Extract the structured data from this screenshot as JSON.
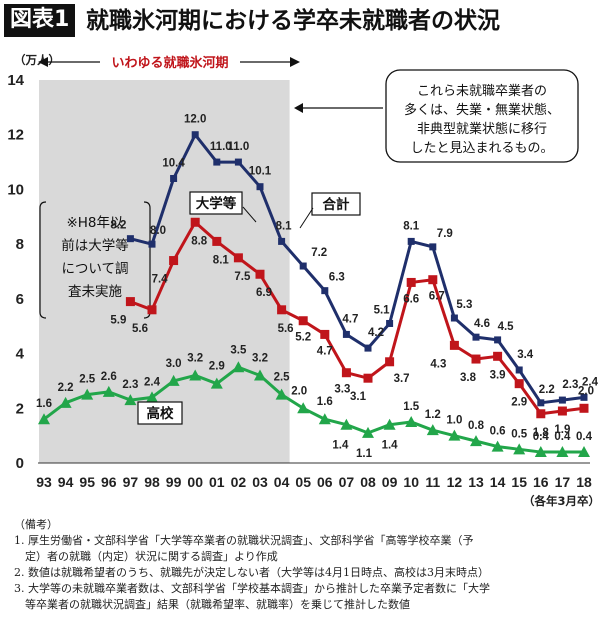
{
  "figure_label": "図表1",
  "figure_title": "就職氷河期における学卒未就職者の状況",
  "chart_data": {
    "type": "line",
    "title": "就職氷河期における学卒未就職者の状況",
    "ylabel": "（万人）",
    "xlabel": "（各年3月卒）",
    "ylim": [
      0,
      14
    ],
    "yticks": [
      0,
      2,
      4,
      6,
      8,
      10,
      12,
      14
    ],
    "categories": [
      "93",
      "94",
      "95",
      "96",
      "97",
      "98",
      "99",
      "00",
      "01",
      "02",
      "03",
      "04",
      "05",
      "06",
      "07",
      "08",
      "09",
      "10",
      "11",
      "12",
      "13",
      "14",
      "15",
      "16",
      "17",
      "18"
    ],
    "series": [
      {
        "name": "合計",
        "color": "#1f2f6b",
        "marker": "square",
        "values": [
          null,
          null,
          null,
          null,
          8.2,
          8.0,
          10.4,
          12.0,
          11.0,
          11.0,
          10.1,
          8.1,
          7.2,
          6.3,
          4.7,
          4.2,
          5.1,
          8.1,
          7.9,
          5.3,
          4.6,
          4.5,
          3.4,
          2.2,
          2.3,
          2.4
        ]
      },
      {
        "name": "大学等",
        "color": "#c0151b",
        "marker": "square",
        "values": [
          null,
          null,
          null,
          null,
          5.9,
          5.6,
          7.4,
          8.8,
          8.1,
          7.5,
          6.9,
          5.6,
          5.2,
          4.7,
          3.3,
          3.1,
          3.7,
          6.6,
          6.7,
          4.3,
          3.8,
          3.9,
          2.9,
          1.8,
          1.9,
          2.0
        ]
      },
      {
        "name": "高校",
        "color": "#22a64a",
        "marker": "triangle",
        "values": [
          1.6,
          2.2,
          2.5,
          2.6,
          2.3,
          2.4,
          3.0,
          3.2,
          2.9,
          3.5,
          3.2,
          2.5,
          2.0,
          1.6,
          1.4,
          1.1,
          1.4,
          1.5,
          1.2,
          1.0,
          0.8,
          0.6,
          0.5,
          0.4,
          0.4,
          0.4
        ]
      }
    ],
    "annotations": {
      "shaded_period_label": "いわゆる就職氷河期",
      "callout": [
        "これら未就職卒業者の",
        "多くは、失業・無業状態、",
        "非典型就業状態に移行",
        "したと見込まれるもの。"
      ],
      "note_box": [
        "※H8年以",
        "前は大学等",
        "について調",
        "査未実施"
      ]
    }
  },
  "notes": {
    "heading": "（備考）",
    "lines": [
      "1. 厚生労働省・文部科学省「大学等卒業者の就職状況調査」、文部科学省「高等学校卒業（予",
      "　定）者の就職（内定）状況に関する調査」より作成",
      "2. 数値は就職希望者のうち、就職先が決定しない者（大学等は4月1日時点、高校は3月末時点）",
      "3. 大学等の未就職卒業者数は、文部科学省「学校基本調査」から推計した卒業予定者数に「大学",
      "　等卒業者の就職状況調査」結果（就職希望率、就職率）を乗じて推計した数値"
    ]
  }
}
